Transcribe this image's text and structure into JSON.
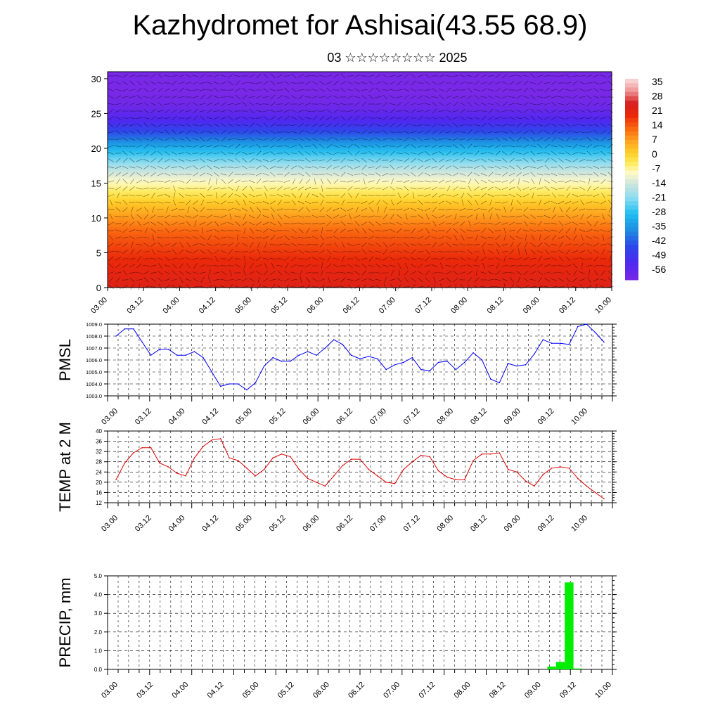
{
  "page": {
    "title": "Kazhydromet for Ashisai(43.55 68.9)",
    "subtitle": "03 ☆☆☆☆☆☆☆☆ 2025"
  },
  "colors": {
    "pmsl_line": "#0000ff",
    "temp_line": "#dd0000",
    "precip_bar": "#00ee00",
    "grid": "#000000"
  },
  "chart_data": [
    {
      "id": "cross-section",
      "type": "heatmap",
      "title": "",
      "xlabel": "",
      "ylabel": "",
      "x_ticks": [
        "03.00",
        "03.12",
        "04.00",
        "04.12",
        "05.00",
        "05.12",
        "06.00",
        "06.12",
        "07.00",
        "07.12",
        "08.00",
        "08.12",
        "09.00",
        "09.12",
        "10.00"
      ],
      "y_ticks": [
        0,
        5,
        10,
        15,
        20,
        25,
        30
      ],
      "ylim": [
        0,
        31
      ],
      "colorbar": {
        "labels": [
          "35",
          "28",
          "21",
          "14",
          "7",
          "0",
          "-7",
          "-14",
          "-21",
          "-28",
          "-35",
          "-42",
          "-49",
          "-56"
        ],
        "range": [
          -60,
          38
        ]
      },
      "temperature_profile": {
        "levels": [
          0,
          2,
          4,
          6,
          8,
          10,
          12,
          14,
          16,
          18,
          20,
          22,
          24,
          26,
          28,
          31
        ],
        "values": [
          24,
          22,
          20,
          17,
          14,
          9,
          3,
          -4,
          -11,
          -20,
          -30,
          -42,
          -52,
          -58,
          -60,
          -60
        ]
      }
    },
    {
      "id": "pmsl",
      "type": "line",
      "ylabel": "PMSL",
      "x_ticks": [
        "03.00",
        "03.12",
        "04.00",
        "04.12",
        "05.00",
        "05.12",
        "06.00",
        "06.12",
        "07.00",
        "07.12",
        "08.00",
        "08.12",
        "09.00",
        "09.12",
        "10.00"
      ],
      "y_ticks": [
        "1003.0",
        "1004.0",
        "1005.0",
        "1006.0",
        "1007.0",
        "1008.0",
        "1009.0"
      ],
      "ylim": [
        1003,
        1009
      ],
      "series": [
        {
          "values": [
            1008.0,
            1008.6,
            1008.6,
            1007.5,
            1006.4,
            1006.9,
            1006.9,
            1006.4,
            1006.4,
            1006.7,
            1006.2,
            1005.0,
            1003.8,
            1004.0,
            1004.0,
            1003.5,
            1004.1,
            1005.5,
            1006.2,
            1005.9,
            1005.9,
            1006.4,
            1006.7,
            1006.4,
            1007.0,
            1007.7,
            1007.3,
            1006.4,
            1006.1,
            1006.3,
            1006.1,
            1005.2,
            1005.6,
            1005.8,
            1006.2,
            1005.2,
            1005.1,
            1005.8,
            1005.9,
            1005.2,
            1005.8,
            1006.6,
            1006.0,
            1004.4,
            1004.1,
            1005.7,
            1005.5,
            1005.6,
            1006.5,
            1007.7,
            1007.4,
            1007.4,
            1007.3,
            1008.8,
            1009.0,
            1008.3,
            1007.5
          ]
        }
      ]
    },
    {
      "id": "temp2m",
      "type": "line",
      "ylabel": "TEMP at 2 M",
      "x_ticks": [
        "03.00",
        "03.12",
        "04.00",
        "04.12",
        "05.00",
        "05.12",
        "06.00",
        "06.12",
        "07.00",
        "07.12",
        "08.00",
        "08.12",
        "09.00",
        "09.12",
        "10.00"
      ],
      "y_ticks": [
        "12",
        "16",
        "20",
        "24",
        "28",
        "32",
        "36",
        "40"
      ],
      "ylim": [
        12,
        40
      ],
      "series": [
        {
          "values": [
            21.0,
            27.5,
            31.5,
            33.5,
            33.5,
            27.5,
            26.0,
            23.5,
            22.5,
            29.5,
            34.0,
            36.5,
            37.0,
            29.5,
            28.5,
            25.5,
            22.5,
            25.0,
            29.5,
            31.0,
            30.0,
            25.0,
            21.5,
            20.0,
            18.5,
            22.5,
            26.5,
            29.0,
            29.0,
            25.0,
            22.5,
            20.0,
            19.5,
            25.0,
            28.0,
            30.5,
            30.0,
            24.5,
            22.0,
            21.0,
            21.0,
            28.5,
            31.0,
            31.0,
            31.5,
            25.0,
            24.0,
            20.5,
            18.5,
            23.0,
            25.5,
            26.0,
            25.5,
            21.5,
            18.5,
            16.0,
            13.5
          ]
        }
      ]
    },
    {
      "id": "precip",
      "type": "bar",
      "ylabel": "PRECIP, mm",
      "x_ticks": [
        "03.00",
        "03.12",
        "04.00",
        "04.12",
        "05.00",
        "05.12",
        "06.00",
        "06.12",
        "07.00",
        "07.12",
        "08.00",
        "08.12",
        "09.00",
        "09.12",
        "10.00"
      ],
      "y_ticks": [
        "0.0",
        "1.0",
        "2.0",
        "3.0",
        "4.0",
        "5.0"
      ],
      "ylim": [
        0,
        5
      ],
      "series": [
        {
          "values": [
            0,
            0,
            0,
            0,
            0,
            0,
            0,
            0,
            0,
            0,
            0,
            0,
            0,
            0,
            0,
            0,
            0,
            0,
            0,
            0,
            0,
            0,
            0,
            0,
            0,
            0,
            0,
            0,
            0,
            0,
            0,
            0,
            0,
            0,
            0,
            0,
            0,
            0,
            0,
            0,
            0,
            0,
            0,
            0,
            0,
            0,
            0,
            0,
            0,
            0,
            0.15,
            0.4,
            4.65,
            0.05,
            0,
            0,
            0
          ]
        }
      ]
    }
  ]
}
